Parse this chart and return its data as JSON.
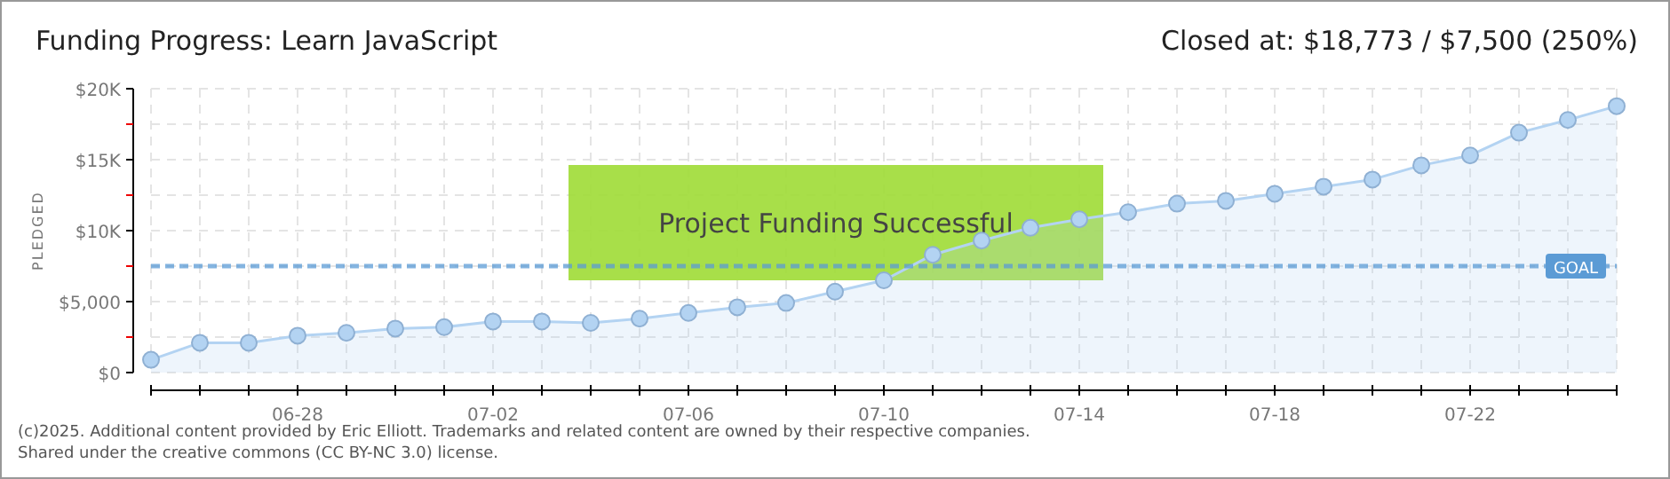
{
  "chart_data": {
    "type": "area",
    "title": "Funding Progress: Learn JavaScript",
    "subtitle": "Closed at: $18,773 / $7,500 (250%)",
    "ylabel": "PLEDGED",
    "x": [
      "--06-25",
      "--06-26",
      "--06-27",
      "--06-28",
      "--06-29",
      "--06-30",
      "--07-01",
      "--07-02",
      "--07-03",
      "--07-04",
      "--07-05",
      "--07-06",
      "--07-07",
      "--07-08",
      "--07-09",
      "--07-10",
      "--07-11",
      "--07-12",
      "--07-13",
      "--07-14",
      "--07-15",
      "--07-16",
      "--07-17",
      "--07-18",
      "--07-19",
      "--07-20",
      "--07-21",
      "--07-22",
      "--07-23",
      "--07-24",
      "--07-25"
    ],
    "series": [
      {
        "color": "#b3d3f2",
        "values": [
          900,
          2100,
          2100,
          2600,
          2800,
          3100,
          3200,
          3600,
          3600,
          3500,
          3800,
          4200,
          4600,
          4900,
          5700,
          6500,
          8300,
          9300,
          10200,
          10800,
          11300,
          11900,
          12100,
          12600,
          13100,
          13600,
          14600,
          15300,
          16900,
          17800,
          18773
        ]
      }
    ],
    "xlim": [
      "--06-25",
      "--07-25"
    ],
    "xticks": [
      {
        "value": "--06-25",
        "label": null
      },
      {
        "value": "--06-26",
        "label": null
      },
      {
        "value": "--06-27",
        "label": null
      },
      {
        "value": "--06-28",
        "label": "06-28"
      },
      {
        "value": "--06-29",
        "label": null
      },
      {
        "value": "--06-30",
        "label": null
      },
      {
        "value": "--07-01",
        "label": null
      },
      {
        "value": "--07-02",
        "label": "07-02"
      },
      {
        "value": "--07-03",
        "label": null
      },
      {
        "value": "--07-04",
        "label": null
      },
      {
        "value": "--07-05",
        "label": null
      },
      {
        "value": "--07-06",
        "label": "07-06"
      },
      {
        "value": "--07-07",
        "label": null
      },
      {
        "value": "--07-08",
        "label": null
      },
      {
        "value": "--07-09",
        "label": null
      },
      {
        "value": "--07-10",
        "label": "07-10"
      },
      {
        "value": "--07-11",
        "label": null
      },
      {
        "value": "--07-12",
        "label": null
      },
      {
        "value": "--07-13",
        "label": null
      },
      {
        "value": "--07-14",
        "label": "07-14"
      },
      {
        "value": "--07-15",
        "label": null
      },
      {
        "value": "--07-16",
        "label": null
      },
      {
        "value": "--07-17",
        "label": null
      },
      {
        "value": "--07-18",
        "label": "07-18"
      },
      {
        "value": "--07-19",
        "label": null
      },
      {
        "value": "--07-20",
        "label": null
      },
      {
        "value": "--07-21",
        "label": null
      },
      {
        "value": "--07-22",
        "label": "07-22"
      },
      {
        "value": "--07-23",
        "label": null
      },
      {
        "value": "--07-24",
        "label": null
      },
      {
        "value": "--07-25",
        "label": null
      }
    ],
    "ylim": [
      0,
      20000
    ],
    "yticks": [
      {
        "value": 0,
        "label": "$0"
      },
      {
        "value": 2500,
        "label": null
      },
      {
        "value": 5000,
        "label": "$5,000"
      },
      {
        "value": 7500,
        "label": null
      },
      {
        "value": 10000,
        "label": "$10K"
      },
      {
        "value": 12500,
        "label": null
      },
      {
        "value": 15000,
        "label": "$15K"
      },
      {
        "value": 17500,
        "label": null
      },
      {
        "value": 20000,
        "label": "$20K"
      }
    ],
    "ref_lines": [
      {
        "axis": "y",
        "value": 7500,
        "label": "GOAL",
        "color": "#5b9bd5",
        "line_style": "dashed"
      }
    ],
    "annotations": [
      "Project Funding Successful",
      "(c)2025. Additional content provided by Eric Elliott. Trademarks and related content are owned by their respective companies.",
      "Shared under the creative commons (CC BY-NC 3.0) license."
    ],
    "grid": true,
    "marker": "circle"
  }
}
